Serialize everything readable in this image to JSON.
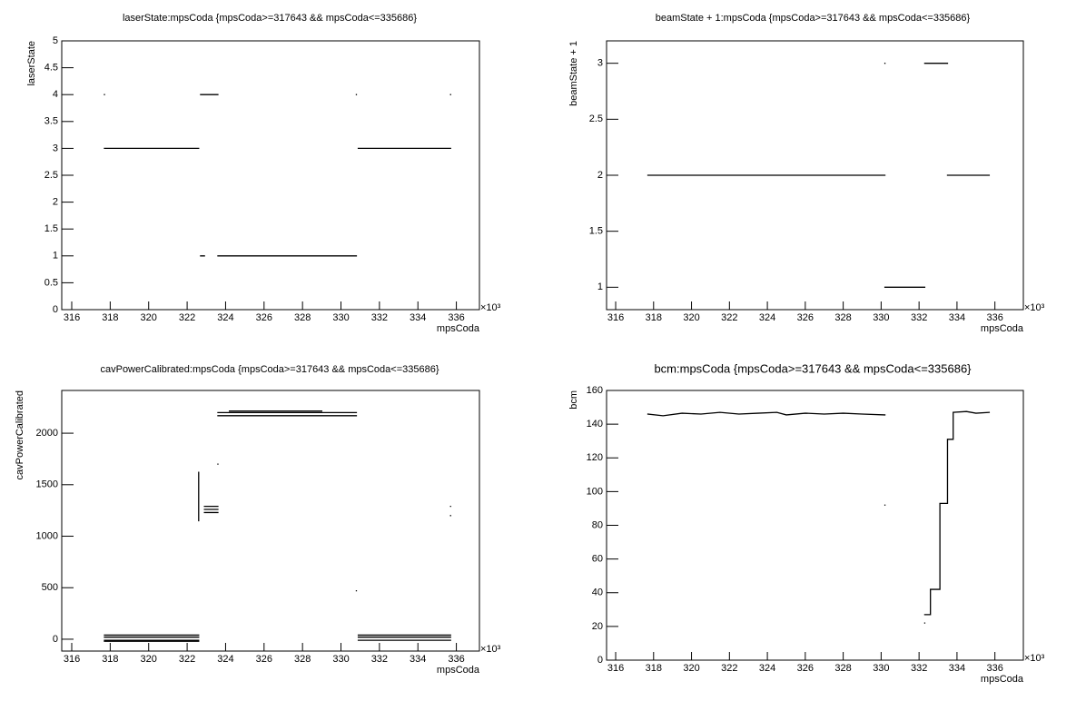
{
  "chart_data": [
    {
      "type": "line",
      "title": "laserState:mpsCoda {mpsCoda>=317643 && mpsCoda<=335686}",
      "x_label": "mpsCoda",
      "y_label": "laserState",
      "x_multiplier": "×10³",
      "xlim": [
        315.48,
        337.2
      ],
      "xticks": [
        316,
        318,
        320,
        322,
        324,
        326,
        328,
        330,
        332,
        334,
        336
      ],
      "ylim": [
        0,
        5
      ],
      "yticks": [
        0,
        0.5,
        1,
        1.5,
        2,
        2.5,
        3,
        3.5,
        4,
        4.5,
        5
      ],
      "series": [
        {
          "name": "laserState",
          "color": "#000000",
          "x": [
            317.7,
            null,
            317.7,
            322.6,
            null,
            322.7,
            323.6,
            null,
            322.7,
            322.9,
            null,
            323.6,
            330.8,
            null,
            330.8,
            null,
            330.9,
            335.7,
            null,
            335.7
          ],
          "values": [
            4,
            null,
            3,
            3,
            null,
            4,
            4,
            null,
            1,
            1,
            null,
            1,
            1,
            null,
            4,
            null,
            3,
            3,
            null,
            4
          ]
        }
      ]
    },
    {
      "type": "line",
      "title": "beamState + 1:mpsCoda {mpsCoda>=317643 && mpsCoda<=335686}",
      "x_label": "mpsCoda",
      "y_label": "beamState + 1",
      "x_multiplier": "×10³",
      "xlim": [
        315.52,
        337.5
      ],
      "xticks": [
        316,
        318,
        320,
        322,
        324,
        326,
        328,
        330,
        332,
        334,
        336
      ],
      "ylim": [
        0.8,
        3.2
      ],
      "yticks": [
        1,
        1.5,
        2,
        2.5,
        3
      ],
      "series": [
        {
          "name": "beamState + 1",
          "color": "#000000",
          "x": [
            317.7,
            330.2,
            null,
            330.2,
            null,
            330.2,
            332.3,
            null,
            332.3,
            333.5,
            null,
            333.5,
            335.7
          ],
          "values": [
            2,
            2,
            null,
            3,
            null,
            1,
            1,
            null,
            3,
            3,
            null,
            2,
            2
          ]
        }
      ]
    },
    {
      "type": "line",
      "title": "cavPowerCalibrated:mpsCoda {mpsCoda>=317643 && mpsCoda<=335686}",
      "x_label": "mpsCoda",
      "y_label": "cavPowerCalibrated",
      "x_multiplier": "×10³",
      "xlim": [
        315.48,
        337.2
      ],
      "xticks": [
        316,
        318,
        320,
        322,
        324,
        326,
        328,
        330,
        332,
        334,
        336
      ],
      "ylim": [
        -115,
        2415
      ],
      "yticks": [
        0,
        500,
        1000,
        1500,
        2000
      ],
      "series": [
        {
          "name": "cavPowerCalibrated",
          "color": "#000000",
          "x": [
            317.7,
            322.6,
            null,
            317.7,
            322.6,
            null,
            317.7,
            322.6,
            null,
            317.7,
            322.6,
            null,
            322.6,
            322.6,
            null,
            322.9,
            323.6,
            null,
            322.9,
            323.6,
            null,
            322.9,
            323.6,
            null,
            323.6,
            null,
            323.6,
            330.8,
            null,
            323.6,
            330.8,
            null,
            324.2,
            329.0,
            null,
            330.8,
            null,
            330.9,
            335.7,
            null,
            330.9,
            335.7,
            null,
            330.9,
            335.7,
            null,
            335.7,
            null,
            335.7
          ],
          "values": [
            40,
            40,
            null,
            20,
            20,
            null,
            -10,
            -10,
            null,
            -20,
            -20,
            null,
            1150,
            1620,
            null,
            1290,
            1290,
            null,
            1260,
            1260,
            null,
            1230,
            1230,
            null,
            1700,
            null,
            2200,
            2200,
            null,
            2170,
            2170,
            null,
            2215,
            2215,
            null,
            470,
            null,
            40,
            40,
            null,
            20,
            20,
            null,
            -10,
            -10,
            null,
            1290,
            null,
            1200
          ]
        }
      ]
    },
    {
      "type": "line",
      "title": "bcm:mpsCoda {mpsCoda>=317643 && mpsCoda<=335686}",
      "x_label": "mpsCoda",
      "y_label": "bcm",
      "x_multiplier": "×10³",
      "xlim": [
        315.52,
        337.5
      ],
      "xticks": [
        316,
        318,
        320,
        322,
        324,
        326,
        328,
        330,
        332,
        334,
        336
      ],
      "ylim": [
        0,
        160
      ],
      "yticks": [
        0,
        20,
        40,
        60,
        80,
        100,
        120,
        140,
        160
      ],
      "series": [
        {
          "name": "bcm",
          "color": "#000000",
          "x": [
            317.7,
            318.5,
            319.5,
            320.5,
            321.5,
            322.5,
            323.5,
            324.5,
            325,
            326,
            327,
            328,
            329,
            330.2,
            null,
            330.2,
            null,
            332.3,
            null,
            332.3,
            332.6,
            332.6,
            333.1,
            333.1,
            333.5,
            333.5,
            333.8,
            333.8,
            334.5,
            335,
            335.7
          ],
          "values": [
            146,
            145,
            146.5,
            146,
            147,
            146,
            146.5,
            147,
            145.5,
            146.5,
            146,
            146.5,
            146,
            145.5,
            null,
            92,
            null,
            22,
            null,
            27,
            27,
            42,
            42,
            93,
            93,
            131,
            131,
            147,
            147.5,
            146.5,
            147
          ]
        }
      ]
    }
  ]
}
